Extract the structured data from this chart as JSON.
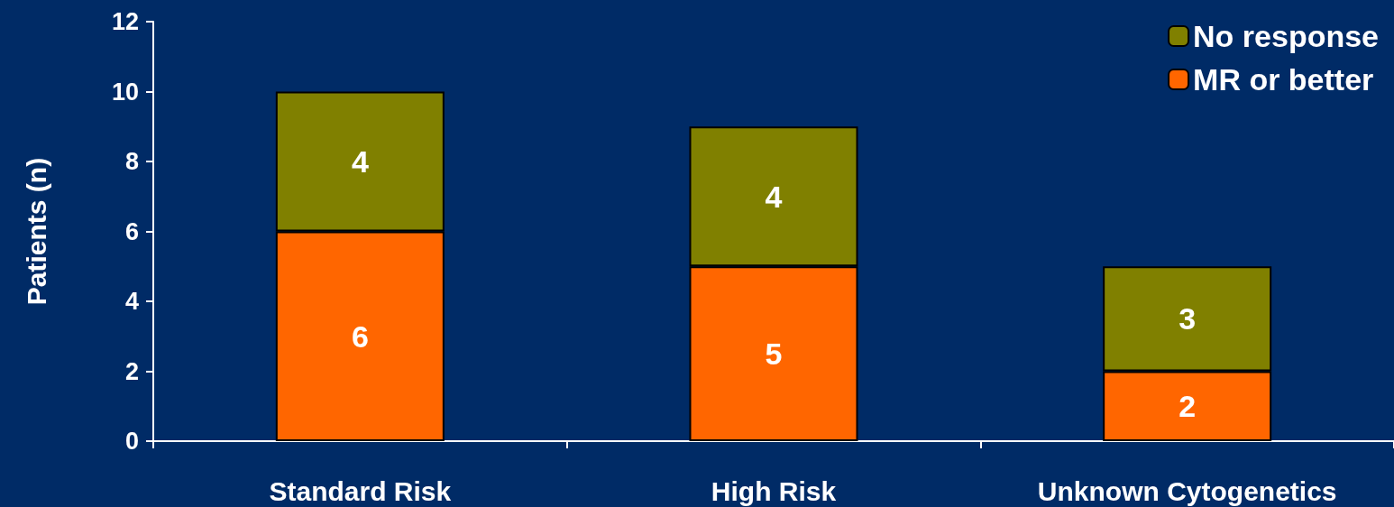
{
  "chart_data": {
    "type": "bar",
    "stacked": true,
    "ylabel": "Patients (n)",
    "categories": [
      "Standard Risk",
      "High Risk",
      "Unknown Cytogenetics"
    ],
    "series": [
      {
        "name": "MR or better",
        "color": "#ff6600",
        "values": [
          6,
          5,
          2
        ]
      },
      {
        "name": "No response",
        "color": "#808000",
        "values": [
          4,
          4,
          3
        ]
      }
    ],
    "ylim": [
      0,
      12
    ],
    "yticks": [
      0,
      2,
      4,
      6,
      8,
      10,
      12
    ],
    "grid": false,
    "legend": "top right",
    "data_labels": true
  }
}
